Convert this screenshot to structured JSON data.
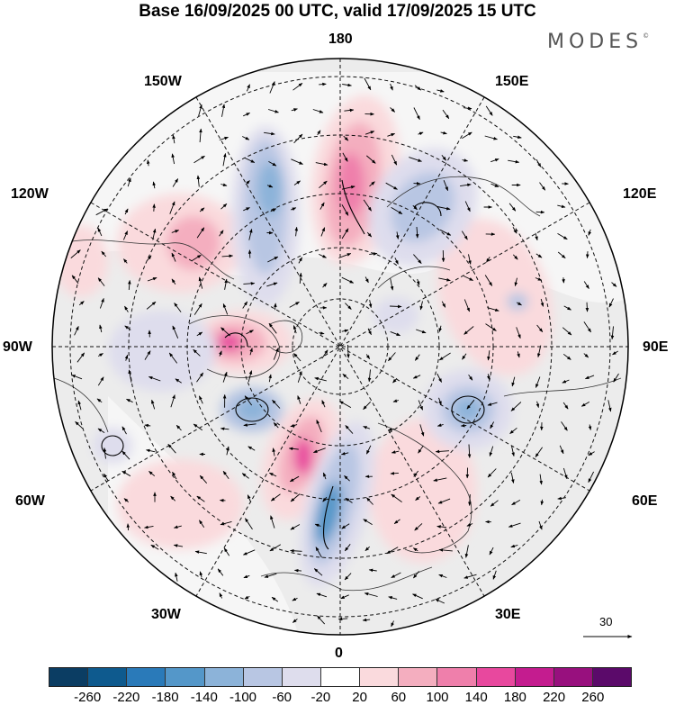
{
  "title": "Base 16/09/2025 00 UTC, valid 17/09/2025 15 UTC",
  "brand": {
    "text": "MODES",
    "mark": "©"
  },
  "longitude_labels": {
    "top": "180",
    "upper_left": "150W",
    "upper_right": "150E",
    "left_upper": "120W",
    "right_upper": "120E",
    "left": "90W",
    "right": "90E",
    "left_lower": "60W",
    "right_lower": "60E",
    "lower_left": "30W",
    "lower_right": "30E",
    "bottom": "0"
  },
  "reference_vector": {
    "label": "30"
  },
  "colorbar": {
    "colors": [
      "#0b3d63",
      "#0e5a8e",
      "#2a7ab9",
      "#5497c9",
      "#8cb3d9",
      "#b8c6e3",
      "#dedded",
      "#ffffff",
      "#fadadd",
      "#f4aebf",
      "#ef7fab",
      "#e8489e",
      "#c41c8f",
      "#98107e",
      "#5b0a6a"
    ],
    "ticks": [
      "-260",
      "-220",
      "-180",
      "-140",
      "-100",
      "-60",
      "-20",
      "20",
      "60",
      "100",
      "140",
      "180",
      "220",
      "260"
    ]
  }
}
